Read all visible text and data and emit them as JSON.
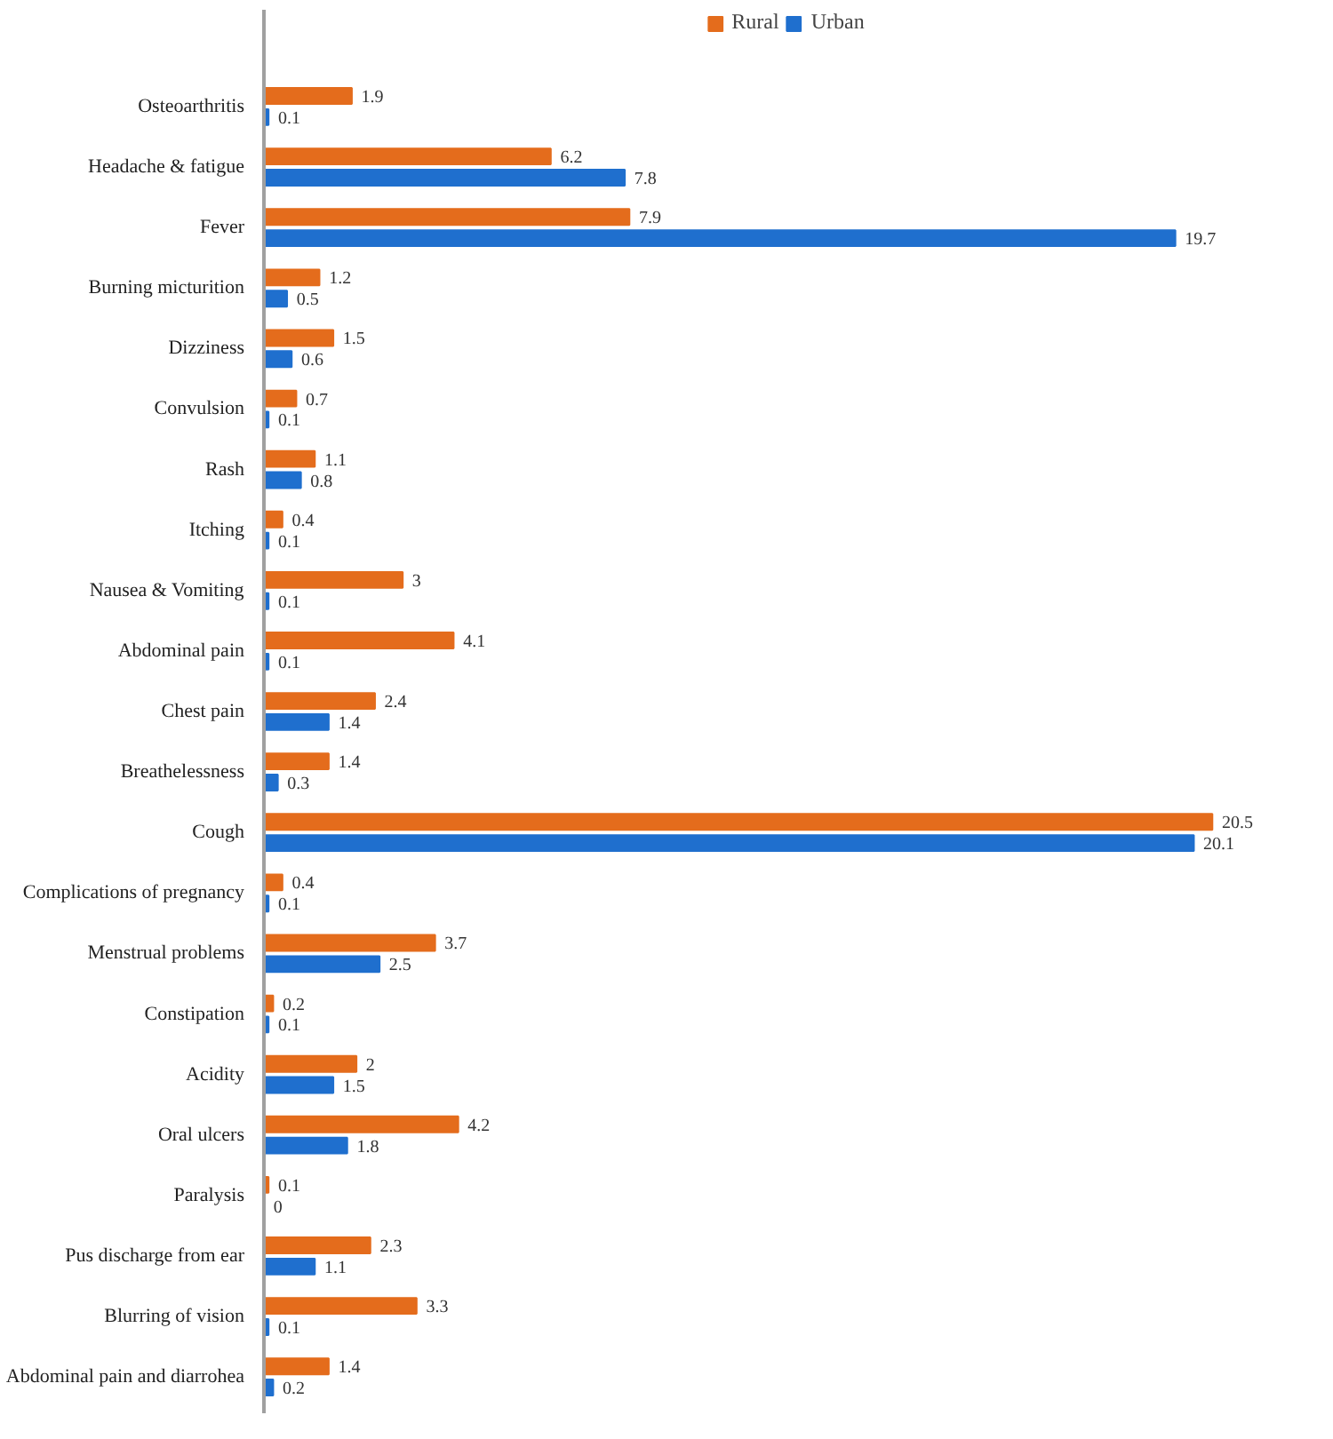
{
  "chart_data": {
    "type": "bar",
    "orientation": "horizontal",
    "data_labels": true,
    "legend": "top",
    "categories": [
      "Osteoarthritis",
      "Headache & fatigue",
      "Fever",
      "Burning micturition",
      "Dizziness",
      "Convulsion",
      "Rash",
      "Itching",
      "Nausea & Vomiting",
      "Abdominal pain",
      "Chest pain",
      "Breathelessness",
      "Cough",
      "Complications of pregnancy",
      "Menstrual problems",
      "Constipation",
      "Acidity",
      "Oral ulcers",
      "Paralysis",
      "Pus discharge from ear",
      "Blurring of vision",
      "Abdominal pain and diarrohea"
    ],
    "series": [
      {
        "name": "Rural",
        "color": "#e46c1c",
        "values": [
          1.9,
          6.2,
          7.9,
          1.2,
          1.5,
          0.7,
          1.1,
          0.4,
          3,
          4.1,
          2.4,
          1.4,
          20.5,
          0.4,
          3.7,
          0.2,
          2,
          4.2,
          0.1,
          2.3,
          3.3,
          1.4
        ]
      },
      {
        "name": "Urban",
        "color": "#1f6fce",
        "values": [
          0.1,
          7.8,
          19.7,
          0.5,
          0.6,
          0.1,
          0.8,
          0.1,
          0.1,
          0.1,
          1.4,
          0.3,
          20.1,
          0.1,
          2.5,
          0.1,
          1.5,
          1.8,
          0,
          1.1,
          0.1,
          0.2
        ]
      }
    ]
  }
}
